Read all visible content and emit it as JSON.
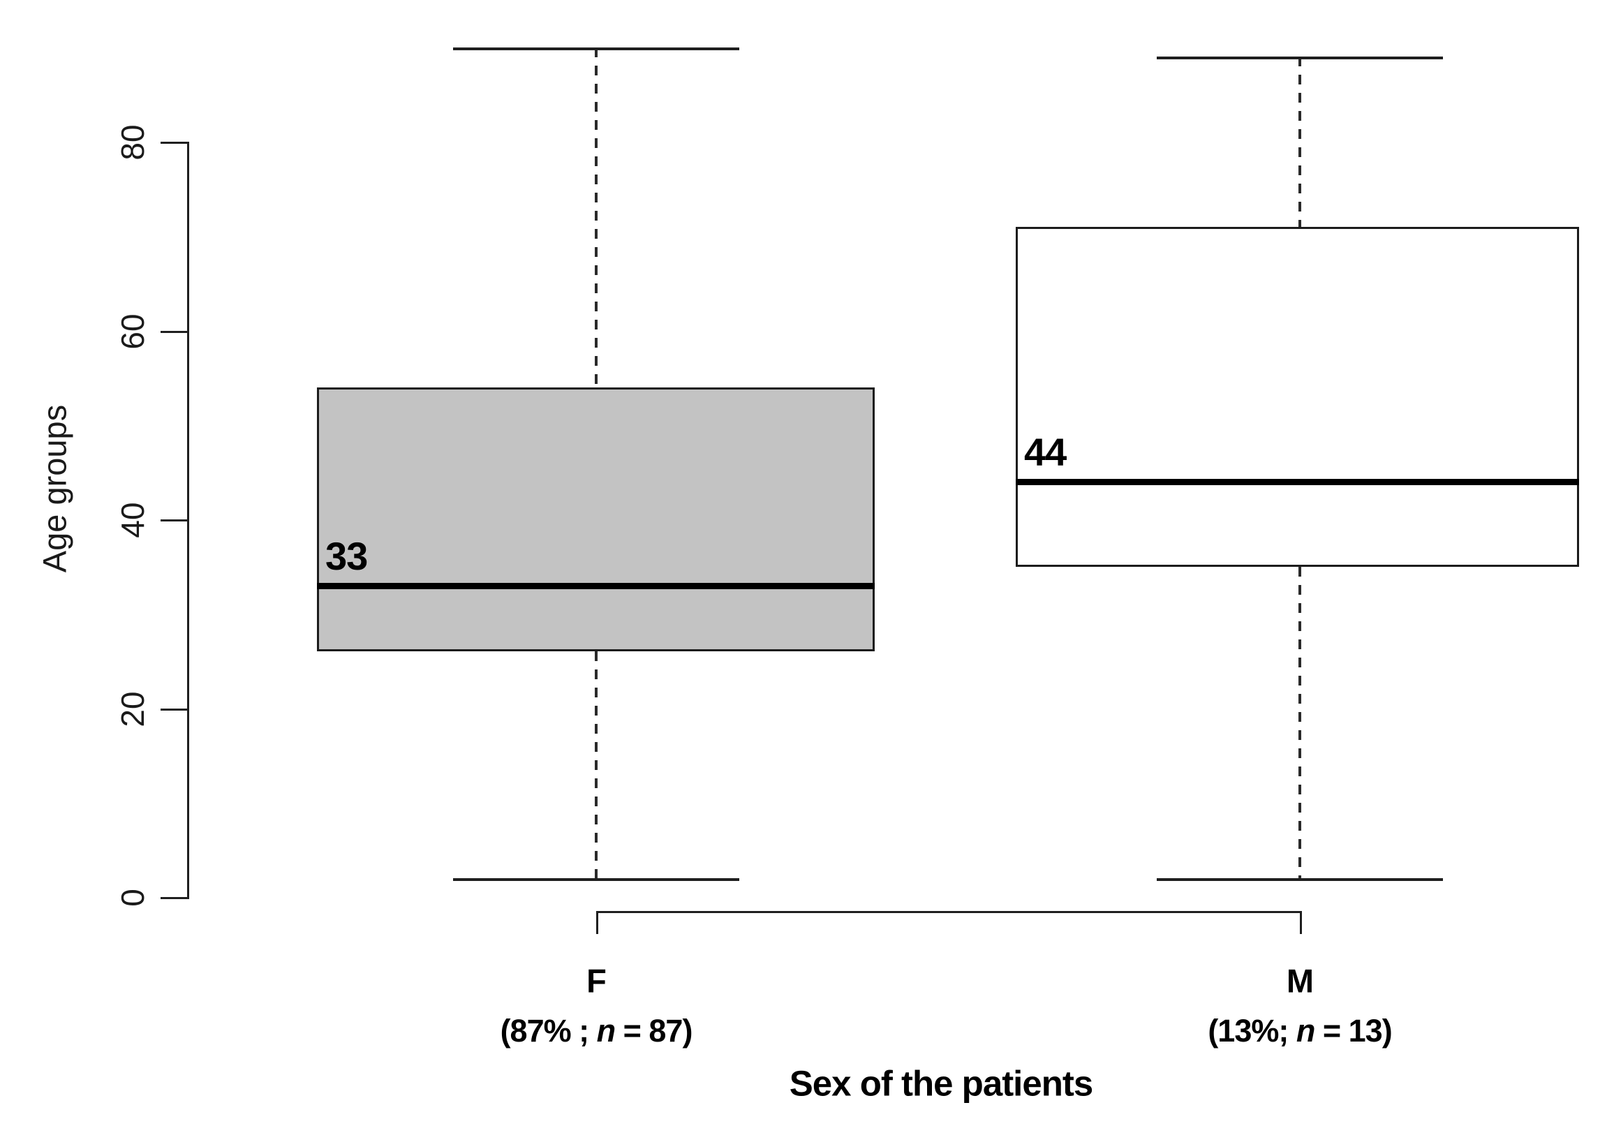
{
  "chart_data": {
    "type": "boxplot",
    "title": "",
    "ylabel": "Age groups",
    "xlabel": "Sex of the patients",
    "ylim": [
      0,
      90
    ],
    "y_ticks": [
      0,
      20,
      40,
      60,
      80
    ],
    "grid": false,
    "legend": "none",
    "groups": [
      {
        "label": "F",
        "sublabel": "(87% ; n = 87)",
        "sublabel_parts": {
          "prefix": "(87% ; ",
          "nvar": "n",
          "suffix": " = 87)"
        },
        "percent": "87%",
        "n": 87,
        "min": 2,
        "q1": 26,
        "median": 33,
        "q3": 54,
        "max": 90,
        "median_annotation": "33",
        "fill": "#c3c3c3"
      },
      {
        "label": "M",
        "sublabel": "(13%; n = 13)",
        "sublabel_parts": {
          "prefix": "(13%; ",
          "nvar": "n",
          "suffix": " = 13)"
        },
        "percent": "13%",
        "n": 13,
        "min": 2,
        "q1": 35,
        "median": 44,
        "q3": 71,
        "max": 89,
        "median_annotation": "44",
        "fill": "#ffffff"
      }
    ],
    "line_color": "#1f1f1f"
  }
}
